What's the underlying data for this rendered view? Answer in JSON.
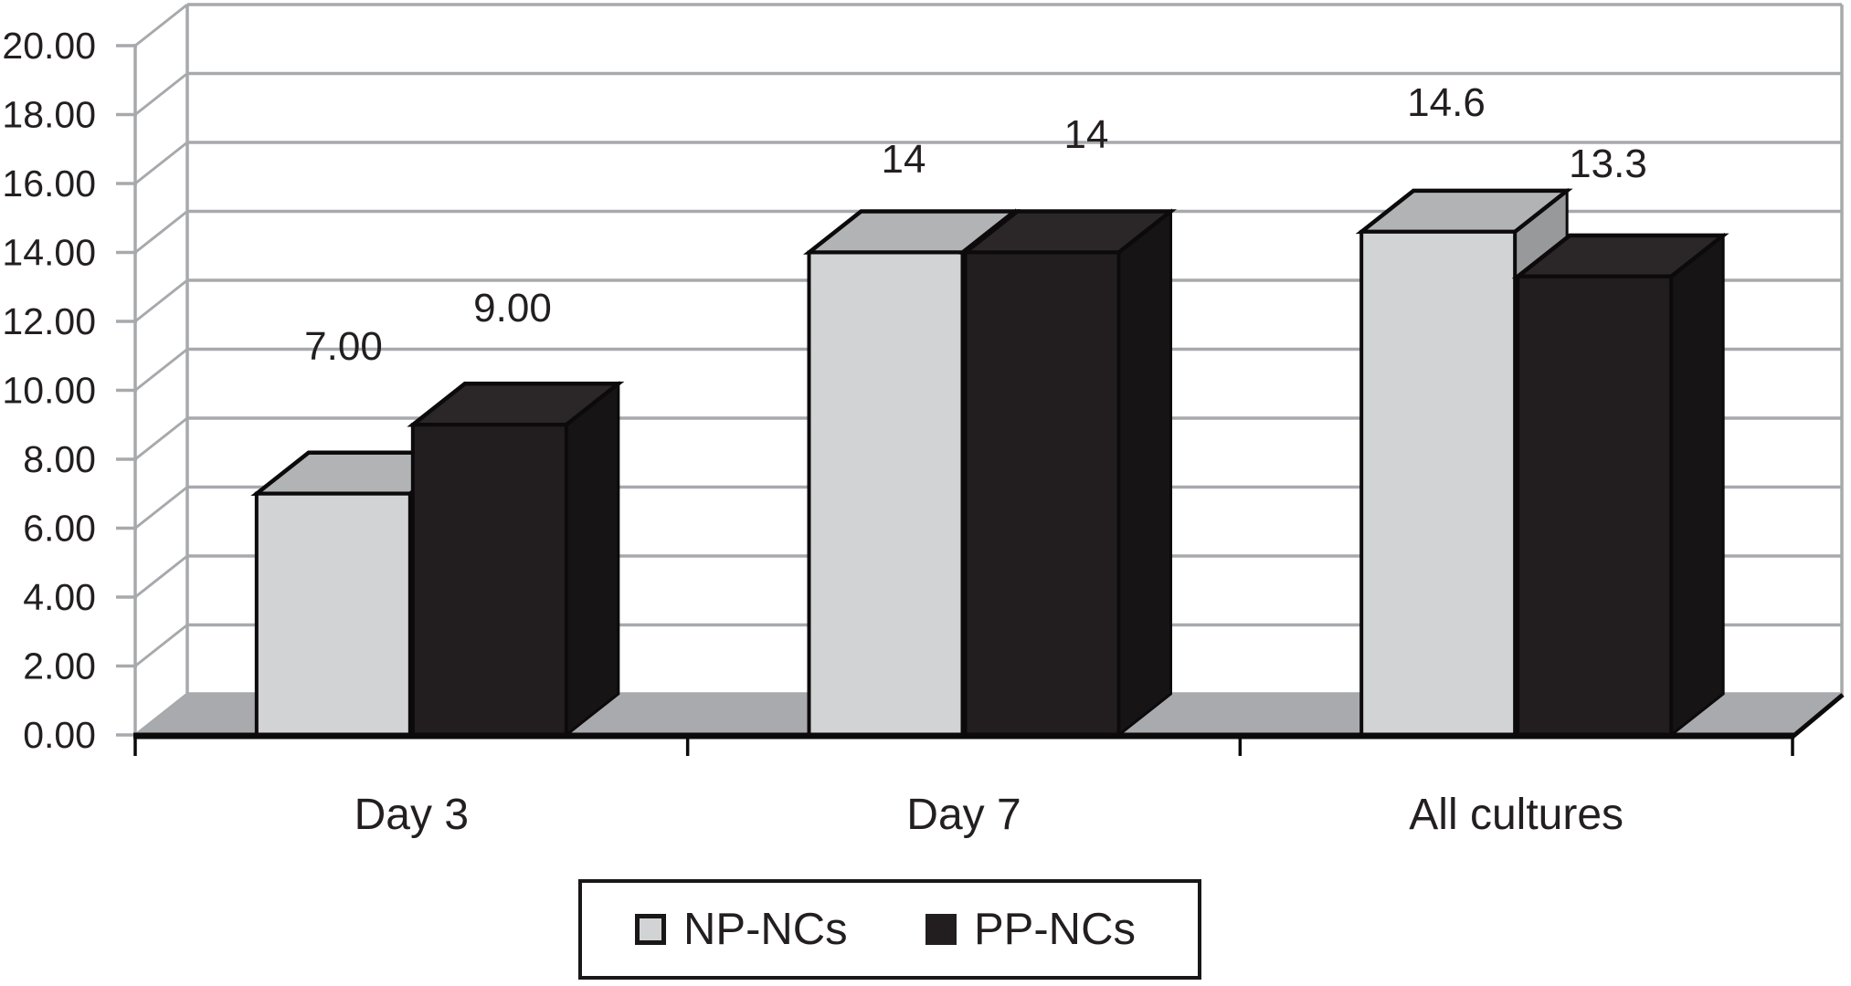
{
  "chart_data": {
    "type": "bar",
    "style": "3d-column",
    "title": "",
    "xlabel": "",
    "ylabel": "",
    "categories": [
      "Day 3",
      "Day 7",
      "All cultures"
    ],
    "series": [
      {
        "name": "NP-NCs",
        "values": [
          7.0,
          14,
          14.6
        ],
        "data_labels": [
          "7.00",
          "14",
          "14.6"
        ],
        "color_front": "#d2d3d4",
        "color_top": "#b1b3b5",
        "color_side": "#97999b"
      },
      {
        "name": "PP-NCs",
        "values": [
          9.0,
          14,
          13.3
        ],
        "data_labels": [
          "9.00",
          "14",
          "13.3"
        ],
        "color_front": "#221e1f",
        "color_top": "#2b2728",
        "color_side": "#171415"
      }
    ],
    "ylim": [
      0,
      20
    ],
    "ytick_step": 2,
    "ytick_labels": [
      "0.00",
      "2.00",
      "4.00",
      "6.00",
      "8.00",
      "10.00",
      "12.00",
      "14.00",
      "16.00",
      "18.00",
      "20.00"
    ],
    "grid": true,
    "legend_position": "bottom"
  },
  "legend": {
    "items": [
      {
        "label": "NP-NCs",
        "color": "#d2d3d4"
      },
      {
        "label": "PP-NCs",
        "color": "#221e1f"
      }
    ]
  },
  "colors": {
    "background": "#ffffff",
    "grid": "#a7a9ac",
    "floor": "#a9aaad",
    "axis_text": "#231f20",
    "data_label_text": "#231f20",
    "baseline": "#0c0a0b",
    "bar_outline": "#0c0a0b",
    "legend_border": "#1a1718"
  }
}
